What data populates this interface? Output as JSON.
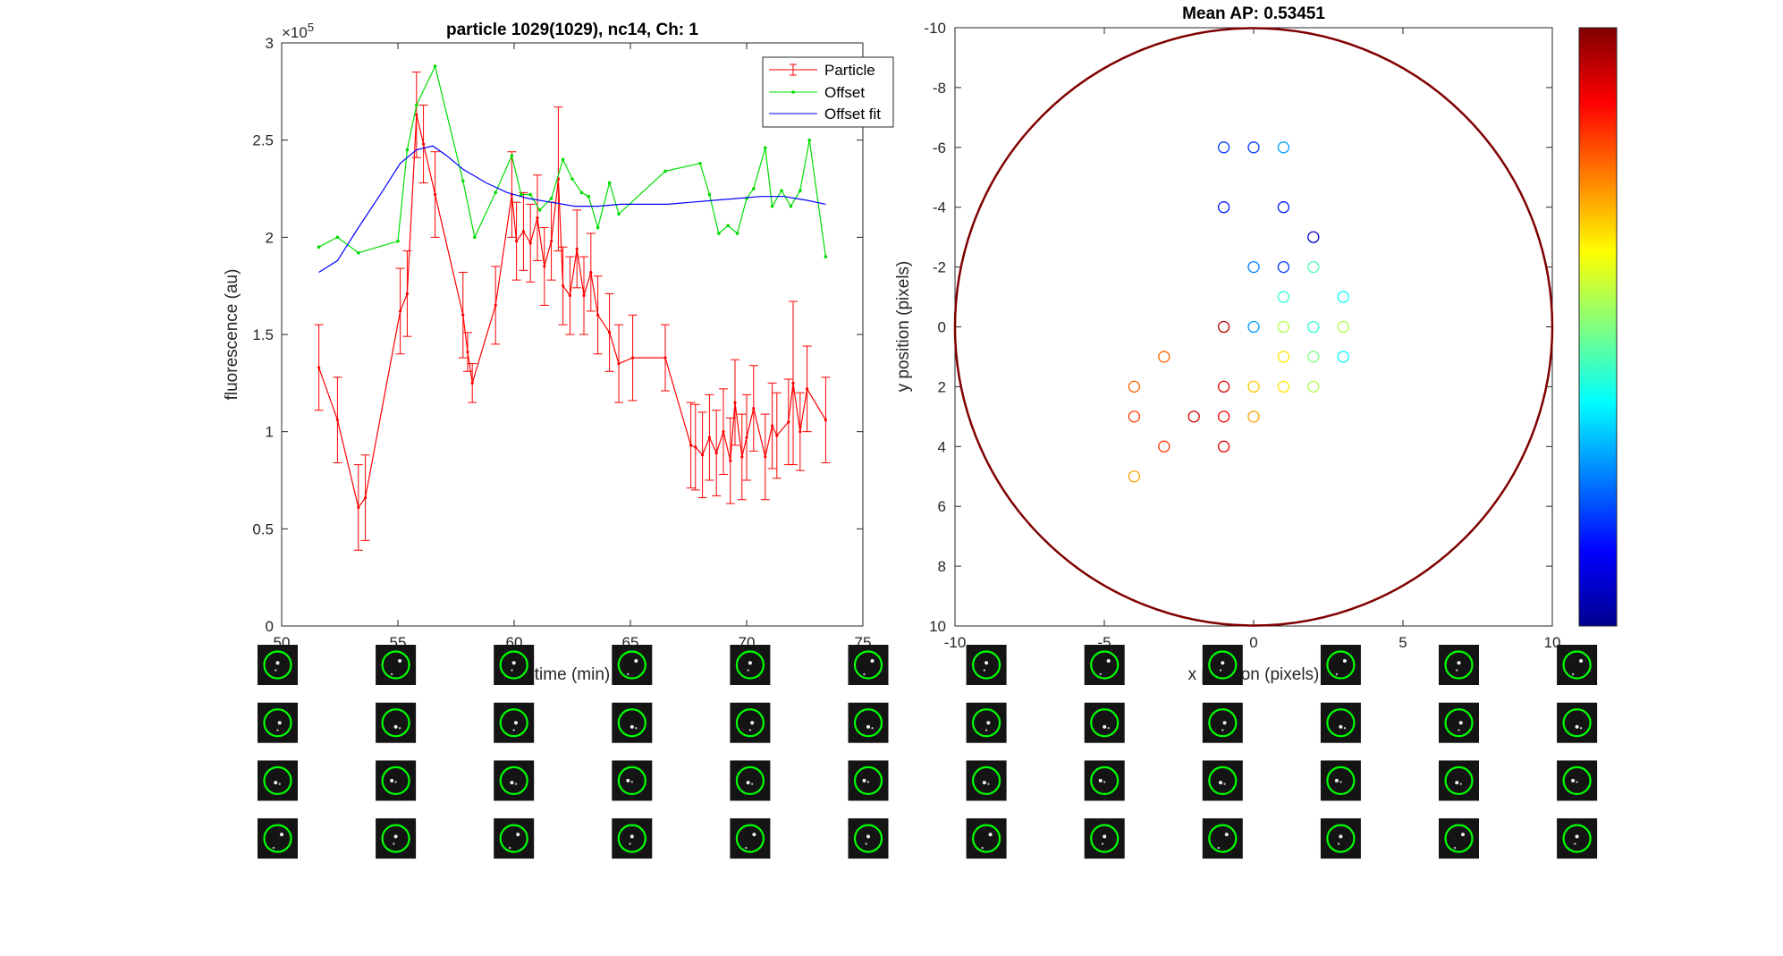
{
  "colors": {
    "particle": "#ff0000",
    "offset": "#00dd00",
    "offset_fit": "#0000ff",
    "axes": "#262626",
    "ring": "#800000",
    "thumb_ring": "#00ff00"
  },
  "chart_data": [
    {
      "type": "line",
      "title": "particle 1029(1029), nc14, Ch: 1",
      "xlabel": "time (min)",
      "ylabel": "fluorescence (au)",
      "y_exponent_label": "×10",
      "y_exponent_power": "5",
      "xlim": [
        50,
        75
      ],
      "ylim": [
        0,
        3
      ],
      "xticks": [
        50,
        55,
        60,
        65,
        70,
        75
      ],
      "yticks": [
        0,
        0.5,
        1,
        1.5,
        2,
        2.5,
        3
      ],
      "grid": false,
      "legend_position": "top-right",
      "series": [
        {
          "name": "Particle",
          "style": "errorbar",
          "x": [
            51.6,
            52.4,
            53.3,
            53.6,
            55.1,
            55.4,
            55.8,
            56.1,
            56.6,
            57.8,
            58.0,
            58.2,
            59.2,
            59.9,
            60.1,
            60.4,
            60.7,
            61.0,
            61.3,
            61.6,
            61.9,
            62.1,
            62.4,
            62.7,
            63.0,
            63.3,
            63.6,
            64.1,
            64.5,
            65.1,
            66.5,
            67.6,
            67.8,
            68.1,
            68.4,
            68.7,
            69.0,
            69.3,
            69.5,
            69.8,
            70.0,
            70.3,
            70.8,
            71.1,
            71.3,
            71.8,
            72.0,
            72.3,
            72.6,
            73.4
          ],
          "y": [
            1.33,
            1.06,
            0.61,
            0.66,
            1.62,
            1.71,
            2.63,
            2.48,
            2.22,
            1.6,
            1.41,
            1.25,
            1.65,
            2.22,
            1.98,
            2.03,
            1.97,
            2.1,
            1.85,
            1.98,
            2.3,
            1.75,
            1.7,
            1.94,
            1.7,
            1.82,
            1.6,
            1.51,
            1.35,
            1.38,
            1.38,
            0.93,
            0.92,
            0.88,
            0.97,
            0.89,
            1.0,
            0.85,
            1.15,
            0.87,
            0.97,
            1.12,
            0.87,
            1.03,
            0.98,
            1.05,
            1.25,
            1.0,
            1.22,
            1.06
          ],
          "error": [
            0.22,
            0.22,
            0.22,
            0.22,
            0.22,
            0.22,
            0.22,
            0.2,
            0.22,
            0.22,
            0.1,
            0.1,
            0.2,
            0.22,
            0.2,
            0.2,
            0.2,
            0.22,
            0.2,
            0.2,
            0.37,
            0.2,
            0.2,
            0.2,
            0.2,
            0.2,
            0.2,
            0.2,
            0.2,
            0.22,
            0.17,
            0.22,
            0.22,
            0.22,
            0.22,
            0.22,
            0.22,
            0.22,
            0.22,
            0.22,
            0.22,
            0.22,
            0.22,
            0.22,
            0.22,
            0.22,
            0.42,
            0.2,
            0.22,
            0.22
          ]
        },
        {
          "name": "Offset",
          "style": "line-dots",
          "x": [
            51.6,
            52.4,
            53.3,
            55.0,
            55.4,
            55.8,
            56.6,
            57.8,
            58.3,
            59.2,
            59.9,
            60.3,
            60.7,
            61.1,
            61.6,
            62.1,
            62.5,
            62.9,
            63.2,
            63.6,
            64.1,
            64.5,
            66.5,
            68.0,
            68.4,
            68.8,
            69.2,
            69.6,
            70.0,
            70.3,
            70.8,
            71.1,
            71.5,
            71.9,
            72.3,
            72.7,
            73.4
          ],
          "y": [
            1.95,
            2.0,
            1.92,
            1.98,
            2.45,
            2.68,
            2.88,
            2.29,
            2.0,
            2.23,
            2.42,
            2.22,
            2.22,
            2.14,
            2.2,
            2.4,
            2.3,
            2.23,
            2.21,
            2.05,
            2.28,
            2.12,
            2.34,
            2.38,
            2.22,
            2.02,
            2.06,
            2.02,
            2.2,
            2.25,
            2.46,
            2.16,
            2.24,
            2.16,
            2.24,
            2.5,
            1.9
          ]
        },
        {
          "name": "Offset fit",
          "style": "line",
          "x": [
            51.6,
            52.4,
            53.3,
            54.3,
            55.1,
            55.8,
            56.5,
            57.1,
            57.8,
            58.8,
            59.7,
            60.6,
            61.6,
            62.6,
            63.6,
            64.6,
            65.6,
            66.6,
            67.6,
            68.6,
            69.6,
            70.6,
            71.6,
            72.6,
            73.4
          ],
          "y": [
            1.82,
            1.88,
            2.05,
            2.23,
            2.38,
            2.45,
            2.47,
            2.42,
            2.35,
            2.28,
            2.23,
            2.2,
            2.18,
            2.16,
            2.16,
            2.17,
            2.17,
            2.17,
            2.18,
            2.19,
            2.2,
            2.21,
            2.21,
            2.19,
            2.17
          ]
        }
      ]
    },
    {
      "type": "scatter",
      "title": "Mean AP: 0.53451",
      "xlabel": "x position (pixels)",
      "ylabel": "y position (pixels)",
      "xlim": [
        -10,
        10
      ],
      "ylim": [
        -10,
        10
      ],
      "y_reversed": true,
      "xticks": [
        -10,
        -5,
        0,
        5,
        10
      ],
      "yticks": [
        -10,
        -8,
        -6,
        -4,
        -2,
        0,
        2,
        4,
        6,
        8,
        10
      ],
      "grid": false,
      "colormap": "jet",
      "colorbar": "right",
      "ring_radius": 10,
      "points": [
        {
          "x": -1,
          "y": -6,
          "c": 0.18
        },
        {
          "x": 0,
          "y": -6,
          "c": 0.18
        },
        {
          "x": 1,
          "y": -6,
          "c": 0.28
        },
        {
          "x": -1,
          "y": -4,
          "c": 0.15
        },
        {
          "x": 1,
          "y": -4,
          "c": 0.15
        },
        {
          "x": 2,
          "y": -3,
          "c": 0.08
        },
        {
          "x": 0,
          "y": -2,
          "c": 0.25
        },
        {
          "x": 1,
          "y": -2,
          "c": 0.18
        },
        {
          "x": 2,
          "y": -2,
          "c": 0.45
        },
        {
          "x": 1,
          "y": -1,
          "c": 0.42
        },
        {
          "x": 3,
          "y": -1,
          "c": 0.38
        },
        {
          "x": -1,
          "y": 0,
          "c": 0.95
        },
        {
          "x": 0,
          "y": 0,
          "c": 0.28
        },
        {
          "x": 1,
          "y": 0,
          "c": 0.55
        },
        {
          "x": 2,
          "y": 0,
          "c": 0.42
        },
        {
          "x": 3,
          "y": 0,
          "c": 0.55
        },
        {
          "x": -3,
          "y": 1,
          "c": 0.78
        },
        {
          "x": 1,
          "y": 1,
          "c": 0.65
        },
        {
          "x": 2,
          "y": 1,
          "c": 0.5
        },
        {
          "x": 3,
          "y": 1,
          "c": 0.38
        },
        {
          "x": -4,
          "y": 2,
          "c": 0.78
        },
        {
          "x": -1,
          "y": 2,
          "c": 0.9
        },
        {
          "x": 0,
          "y": 2,
          "c": 0.68
        },
        {
          "x": 1,
          "y": 2,
          "c": 0.65
        },
        {
          "x": 2,
          "y": 2,
          "c": 0.55
        },
        {
          "x": -4,
          "y": 3,
          "c": 0.82
        },
        {
          "x": -2,
          "y": 3,
          "c": 0.92
        },
        {
          "x": -1,
          "y": 3,
          "c": 0.88
        },
        {
          "x": 0,
          "y": 3,
          "c": 0.72
        },
        {
          "x": -3,
          "y": 4,
          "c": 0.82
        },
        {
          "x": -1,
          "y": 4,
          "c": 0.9
        },
        {
          "x": -4,
          "y": 5,
          "c": 0.72
        }
      ]
    }
  ],
  "thumbnails": {
    "rows": 4,
    "cols": 12,
    "ring_offsets": [
      [
        [
          0,
          0
        ],
        [
          0,
          0
        ],
        [
          0,
          0
        ],
        [
          0,
          0
        ],
        [
          0,
          0
        ],
        [
          0,
          0
        ],
        [
          0,
          0
        ],
        [
          0,
          0
        ],
        [
          0,
          0
        ],
        [
          0,
          0
        ],
        [
          0,
          0
        ],
        [
          0,
          0
        ]
      ],
      [
        [
          0,
          0
        ],
        [
          0,
          0
        ],
        [
          0,
          0
        ],
        [
          0,
          0
        ],
        [
          0,
          0
        ],
        [
          0,
          0
        ],
        [
          0,
          0
        ],
        [
          0,
          0
        ],
        [
          0,
          0
        ],
        [
          0,
          0
        ],
        [
          0,
          0
        ],
        [
          0,
          0
        ]
      ],
      [
        [
          0,
          0
        ],
        [
          0,
          0
        ],
        [
          0,
          0
        ],
        [
          0,
          0
        ],
        [
          0,
          0
        ],
        [
          0,
          0
        ],
        [
          0,
          0
        ],
        [
          0,
          0
        ],
        [
          0,
          0
        ],
        [
          0,
          0
        ],
        [
          0,
          0
        ],
        [
          0,
          0
        ]
      ],
      [
        [
          0,
          0
        ],
        [
          0,
          0
        ],
        [
          0,
          0
        ],
        [
          0,
          0
        ],
        [
          0,
          0
        ],
        [
          0,
          0
        ],
        [
          0,
          0
        ],
        [
          0,
          0
        ],
        [
          0,
          0
        ],
        [
          0,
          0
        ],
        [
          0,
          0
        ],
        [
          0,
          0
        ]
      ]
    ]
  }
}
